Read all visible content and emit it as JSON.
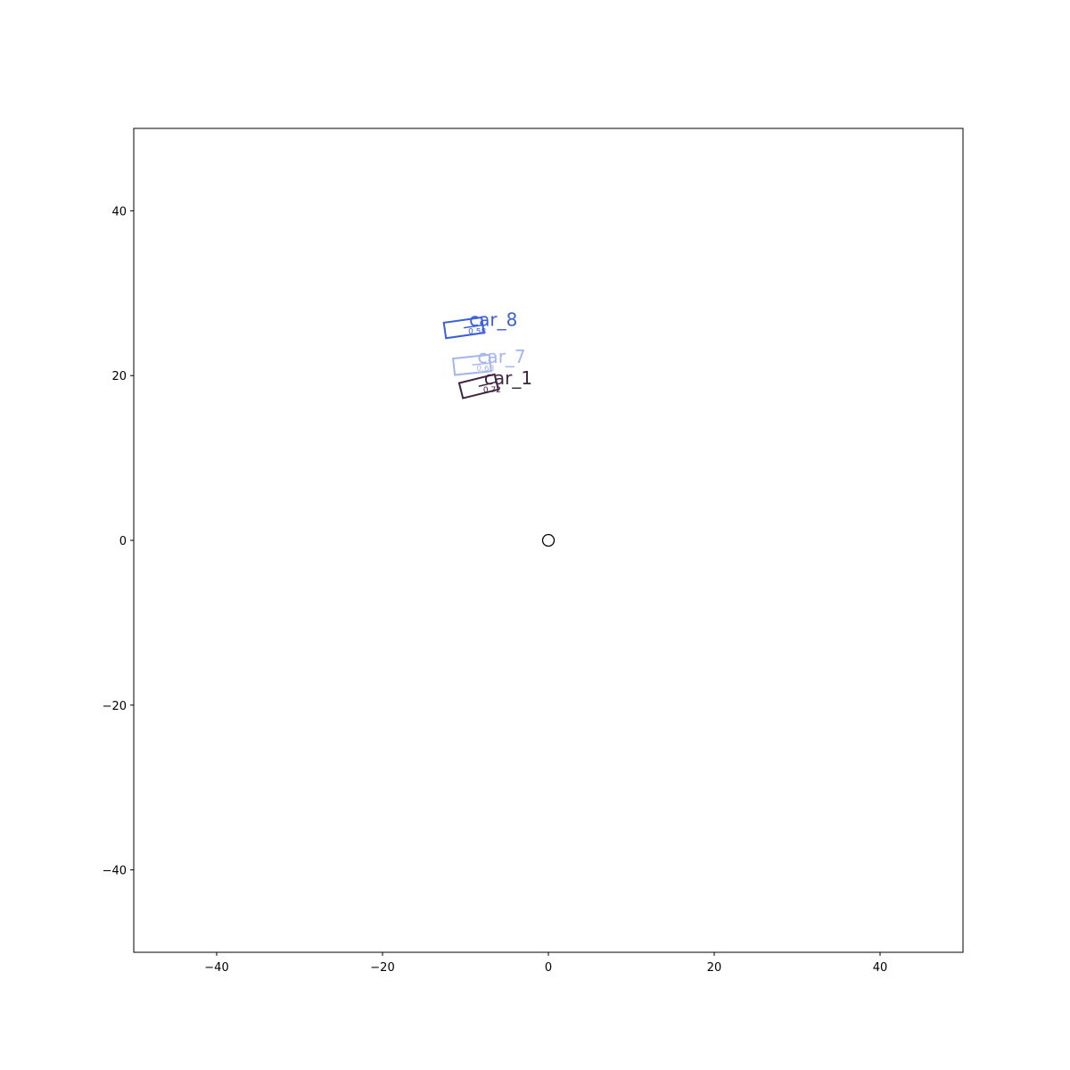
{
  "chart_data": {
    "type": "scatter",
    "title": "",
    "xlabel": "",
    "ylabel": "",
    "xlim": [
      -50,
      50
    ],
    "ylim": [
      -50,
      50
    ],
    "grid": false,
    "x_ticks": [
      -40,
      -20,
      0,
      20,
      40
    ],
    "x_tick_labels": [
      "−40",
      "−20",
      "0",
      "20",
      "40"
    ],
    "y_ticks": [
      -40,
      -20,
      0,
      20,
      40
    ],
    "y_tick_labels": [
      "−40",
      "−20",
      "0",
      "20",
      "40"
    ],
    "ego": {
      "x": 0,
      "y": 0,
      "marker": "circle"
    },
    "boxes": [
      {
        "label": "car_8",
        "score": "0.58",
        "x": -10.2,
        "y": 25.8,
        "length": 4.6,
        "width": 1.9,
        "heading_deg": 8,
        "color": "#3a5fdc"
      },
      {
        "label": "car_7",
        "score": "0.63",
        "x": -9.2,
        "y": 21.3,
        "length": 4.4,
        "width": 2.0,
        "heading_deg": 6,
        "color": "#a4b5ec"
      },
      {
        "label": "car_1",
        "score": "0.72",
        "x": -8.4,
        "y": 18.7,
        "length": 4.4,
        "width": 1.9,
        "heading_deg": 14,
        "color": "#3f2240"
      }
    ]
  }
}
